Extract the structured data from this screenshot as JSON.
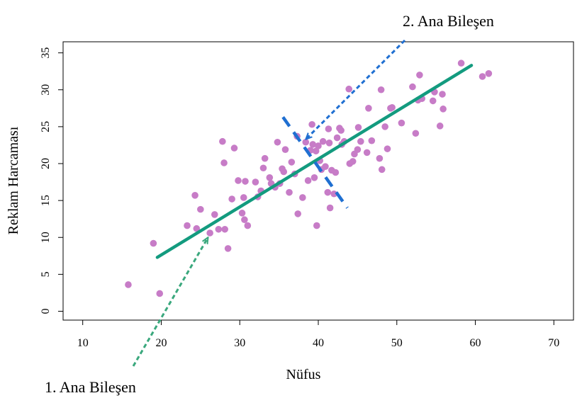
{
  "chart_data": {
    "type": "scatter",
    "title": "",
    "xlabel": "Nüfus",
    "ylabel": "Reklam Harcaması",
    "xlim": [
      7.5,
      72.5
    ],
    "ylim": [
      -1.2,
      36.5
    ],
    "xticks": [
      "10",
      "20",
      "30",
      "40",
      "50",
      "60",
      "70"
    ],
    "yticks": [
      "0",
      "5",
      "10",
      "15",
      "20",
      "25",
      "30",
      "35"
    ],
    "grid": false,
    "legend": "none",
    "colors": {
      "points": "#c77cc7",
      "pc1": "#139b7f",
      "pc1_arrow": "#3aa87d",
      "pc2": "#1f6fd1"
    },
    "annotations": {
      "pc1_label": "1. Ana Bileşen",
      "pc2_label": "2. Ana Bileşen"
    },
    "pc1_line": {
      "x": [
        19.5,
        59.5
      ],
      "y": [
        7.3,
        33.3
      ]
    },
    "pc2_line": {
      "x": [
        35.5,
        43.7
      ],
      "y": [
        26.3,
        14.0
      ]
    },
    "points": [
      {
        "x": 15.8,
        "y": 3.6
      },
      {
        "x": 19.0,
        "y": 9.2
      },
      {
        "x": 19.8,
        "y": 2.4
      },
      {
        "x": 23.3,
        "y": 11.6
      },
      {
        "x": 24.3,
        "y": 15.7
      },
      {
        "x": 24.5,
        "y": 11.2
      },
      {
        "x": 25.0,
        "y": 13.8
      },
      {
        "x": 26.2,
        "y": 10.6
      },
      {
        "x": 26.8,
        "y": 13.1
      },
      {
        "x": 27.3,
        "y": 11.1
      },
      {
        "x": 27.8,
        "y": 23.0
      },
      {
        "x": 28.0,
        "y": 20.1
      },
      {
        "x": 28.1,
        "y": 11.1
      },
      {
        "x": 28.5,
        "y": 8.5
      },
      {
        "x": 29.0,
        "y": 15.2
      },
      {
        "x": 29.3,
        "y": 22.1
      },
      {
        "x": 29.8,
        "y": 17.7
      },
      {
        "x": 30.3,
        "y": 13.3
      },
      {
        "x": 30.5,
        "y": 15.4
      },
      {
        "x": 30.6,
        "y": 12.4
      },
      {
        "x": 30.7,
        "y": 17.6
      },
      {
        "x": 31.0,
        "y": 11.6
      },
      {
        "x": 32.0,
        "y": 17.5
      },
      {
        "x": 32.3,
        "y": 15.5
      },
      {
        "x": 32.7,
        "y": 16.3
      },
      {
        "x": 33.0,
        "y": 19.4
      },
      {
        "x": 33.2,
        "y": 20.7
      },
      {
        "x": 33.8,
        "y": 18.1
      },
      {
        "x": 34.0,
        "y": 17.3
      },
      {
        "x": 34.5,
        "y": 16.8
      },
      {
        "x": 34.8,
        "y": 22.9
      },
      {
        "x": 35.1,
        "y": 17.3
      },
      {
        "x": 35.4,
        "y": 19.3
      },
      {
        "x": 35.6,
        "y": 18.9
      },
      {
        "x": 35.8,
        "y": 21.9
      },
      {
        "x": 36.3,
        "y": 16.1
      },
      {
        "x": 36.6,
        "y": 20.2
      },
      {
        "x": 37.0,
        "y": 18.6
      },
      {
        "x": 37.3,
        "y": 23.7
      },
      {
        "x": 37.4,
        "y": 13.2
      },
      {
        "x": 38.0,
        "y": 15.4
      },
      {
        "x": 38.4,
        "y": 22.9
      },
      {
        "x": 38.7,
        "y": 17.7
      },
      {
        "x": 39.0,
        "y": 21.8
      },
      {
        "x": 39.2,
        "y": 25.3
      },
      {
        "x": 39.3,
        "y": 22.6
      },
      {
        "x": 39.5,
        "y": 18.1
      },
      {
        "x": 39.7,
        "y": 21.7
      },
      {
        "x": 39.8,
        "y": 11.6
      },
      {
        "x": 40.0,
        "y": 22.4
      },
      {
        "x": 40.2,
        "y": 20.4
      },
      {
        "x": 40.4,
        "y": 19.2
      },
      {
        "x": 40.6,
        "y": 23.0
      },
      {
        "x": 40.9,
        "y": 19.6
      },
      {
        "x": 41.2,
        "y": 16.1
      },
      {
        "x": 41.3,
        "y": 24.7
      },
      {
        "x": 41.4,
        "y": 22.8
      },
      {
        "x": 41.5,
        "y": 14.0
      },
      {
        "x": 41.7,
        "y": 19.1
      },
      {
        "x": 42.0,
        "y": 15.9
      },
      {
        "x": 42.2,
        "y": 18.8
      },
      {
        "x": 42.4,
        "y": 23.5
      },
      {
        "x": 42.7,
        "y": 24.8
      },
      {
        "x": 42.9,
        "y": 24.5
      },
      {
        "x": 43.0,
        "y": 22.6
      },
      {
        "x": 43.3,
        "y": 23.0
      },
      {
        "x": 43.9,
        "y": 30.1
      },
      {
        "x": 44.0,
        "y": 20.0
      },
      {
        "x": 44.4,
        "y": 20.3
      },
      {
        "x": 44.6,
        "y": 21.3
      },
      {
        "x": 45.0,
        "y": 21.9
      },
      {
        "x": 45.1,
        "y": 24.9
      },
      {
        "x": 45.4,
        "y": 23.0
      },
      {
        "x": 46.2,
        "y": 21.5
      },
      {
        "x": 46.4,
        "y": 27.5
      },
      {
        "x": 46.8,
        "y": 23.1
      },
      {
        "x": 47.8,
        "y": 20.7
      },
      {
        "x": 48.0,
        "y": 30.0
      },
      {
        "x": 48.1,
        "y": 19.2
      },
      {
        "x": 48.5,
        "y": 25.0
      },
      {
        "x": 48.8,
        "y": 22.0
      },
      {
        "x": 49.2,
        "y": 27.5
      },
      {
        "x": 49.4,
        "y": 27.6
      },
      {
        "x": 50.6,
        "y": 25.5
      },
      {
        "x": 52.0,
        "y": 30.4
      },
      {
        "x": 52.4,
        "y": 24.1
      },
      {
        "x": 52.7,
        "y": 28.6
      },
      {
        "x": 52.9,
        "y": 32.0
      },
      {
        "x": 53.2,
        "y": 28.8
      },
      {
        "x": 54.6,
        "y": 28.5
      },
      {
        "x": 54.8,
        "y": 29.7
      },
      {
        "x": 55.5,
        "y": 25.1
      },
      {
        "x": 55.8,
        "y": 29.4
      },
      {
        "x": 55.9,
        "y": 27.4
      },
      {
        "x": 58.2,
        "y": 33.6
      },
      {
        "x": 60.9,
        "y": 31.8
      },
      {
        "x": 61.7,
        "y": 32.2
      }
    ]
  }
}
